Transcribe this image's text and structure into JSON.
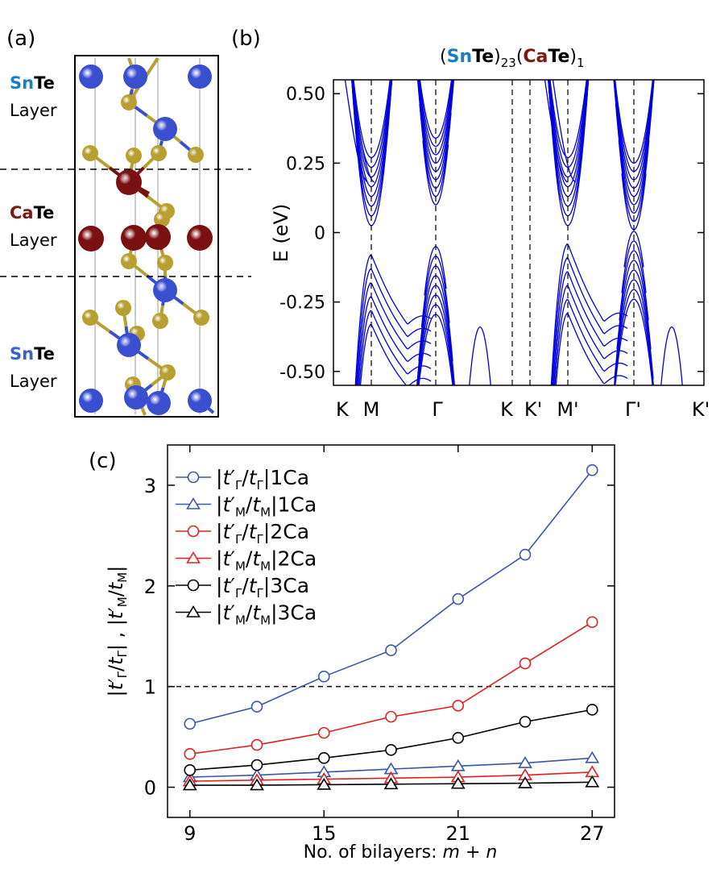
{
  "panels": {
    "a": {
      "label": "(a)",
      "layers": [
        {
          "name_part1": "Sn",
          "name_part2": "Te",
          "word": "Layer",
          "color1": "#1a7dbf"
        },
        {
          "name_part1": "Ca",
          "name_part2": "Te",
          "word": "Layer",
          "color1": "#7a1a10"
        },
        {
          "name_part1": "Sn",
          "name_part2": "Te",
          "word": "Layer",
          "color1": "#3a5fc8"
        }
      ],
      "atom_colors": {
        "Sn": "#3a4fd0",
        "Ca": "#7a1010",
        "Te": "#b8a030"
      }
    },
    "b": {
      "label": "(b)",
      "title_parts": [
        "(",
        "Sn",
        "Te",
        ")",
        "23",
        "(",
        "Ca",
        "Te",
        ")",
        "1"
      ],
      "title_colors": {
        "Sn": "#1a7dbf",
        "Ca": "#7a1a10"
      }
    },
    "c": {
      "label": "(c)"
    }
  },
  "chart_data": [
    {
      "type": "line",
      "panel": "b",
      "description_type": "band-structure",
      "ylabel": "E (eV)",
      "ylim": [
        -0.55,
        0.55
      ],
      "yticks": [
        0.5,
        0.25,
        0,
        -0.25,
        -0.5
      ],
      "ytick_labels": [
        "0.50",
        "0.25",
        "0",
        "-0.25",
        "-0.50"
      ],
      "xticks": [
        "K",
        "M",
        "Γ",
        "K",
        "K'",
        "M'",
        "Γ'",
        "K'"
      ],
      "xtick_positions": [
        0,
        0.115,
        0.335,
        0.6,
        0.66,
        0.775,
        0.995,
        1.2
      ],
      "line_color": "#0000dd",
      "band_edges": {
        "M": {
          "conduction": 0.025,
          "valence": -0.08
        },
        "Gamma": {
          "conduction": 0.1,
          "valence": -0.05
        },
        "M_prime": {
          "conduction": 0.025,
          "valence": -0.04
        },
        "Gamma_prime": {
          "conduction": 0.01,
          "valence": 0.005
        }
      }
    },
    {
      "type": "line",
      "panel": "c",
      "xlabel_parts": [
        "No. of bilayers: ",
        "m",
        " + ",
        "n"
      ],
      "xlim": [
        8,
        28
      ],
      "ylim": [
        -0.3,
        3.4
      ],
      "xticks": [
        9,
        15,
        21,
        27
      ],
      "yticks": [
        0,
        1,
        2,
        3
      ],
      "hline": 1,
      "legend_position": "top-left",
      "x": [
        9,
        12,
        15,
        18,
        21,
        24,
        27
      ],
      "series": [
        {
          "name_frac": "Γ",
          "name_suffix": "1Ca",
          "marker": "circle",
          "color": "#3a56a8",
          "values": [
            0.63,
            0.8,
            1.1,
            1.36,
            1.87,
            2.31,
            3.15
          ]
        },
        {
          "name_frac": "M",
          "name_suffix": "1Ca",
          "marker": "triangle",
          "color": "#3a56a8",
          "values": [
            0.1,
            0.12,
            0.15,
            0.18,
            0.21,
            0.24,
            0.29
          ]
        },
        {
          "name_frac": "Γ",
          "name_suffix": "2Ca",
          "marker": "circle",
          "color": "#e02020",
          "values": [
            0.33,
            0.42,
            0.54,
            0.7,
            0.81,
            1.23,
            1.64
          ]
        },
        {
          "name_frac": "M",
          "name_suffix": "2Ca",
          "marker": "triangle",
          "color": "#e02020",
          "values": [
            0.06,
            0.07,
            0.08,
            0.09,
            0.1,
            0.12,
            0.15
          ]
        },
        {
          "name_frac": "Γ",
          "name_suffix": "3Ca",
          "marker": "circle",
          "color": "#000000",
          "values": [
            0.17,
            0.22,
            0.29,
            0.37,
            0.49,
            0.65,
            0.77
          ]
        },
        {
          "name_frac": "M",
          "name_suffix": "3Ca",
          "marker": "triangle",
          "color": "#000000",
          "values": [
            0.02,
            0.02,
            0.025,
            0.03,
            0.035,
            0.04,
            0.05
          ]
        }
      ]
    }
  ]
}
